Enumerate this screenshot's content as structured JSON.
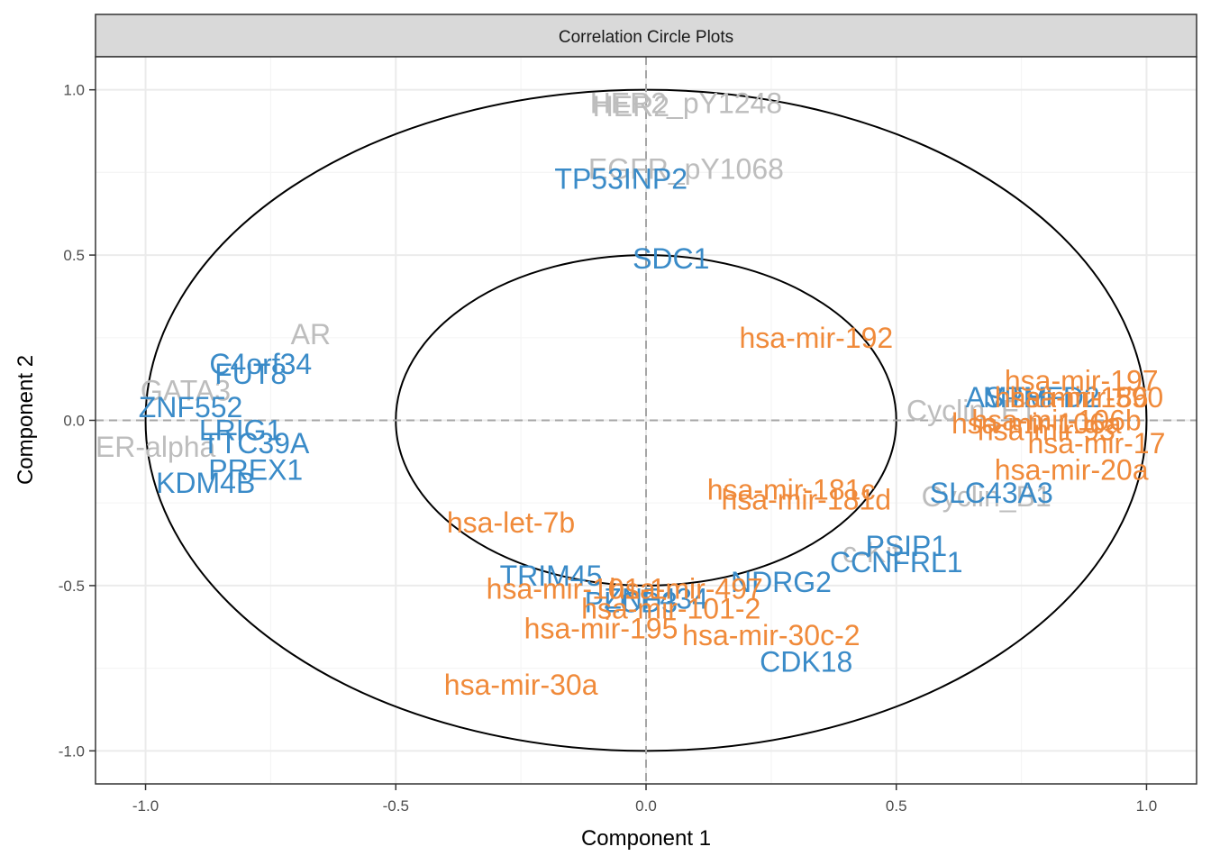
{
  "chart_data": {
    "type": "scatter",
    "title": "Correlation Circle Plots",
    "xlabel": "Component  1",
    "ylabel": "Component  2",
    "xlim": [
      -1.1,
      1.1
    ],
    "ylim": [
      -1.1,
      1.1
    ],
    "x_ticks": [
      -1.0,
      -0.5,
      0.0,
      0.5,
      1.0
    ],
    "y_ticks": [
      -1.0,
      -0.5,
      0.0,
      0.5,
      1.0
    ],
    "x_tick_labels": [
      "-1.0",
      "-0.5",
      "0.0",
      "0.5",
      "1.0"
    ],
    "y_tick_labels": [
      "-1.0",
      "-0.5",
      "0.0",
      "0.5",
      "1.0"
    ],
    "circles": [
      {
        "radius": 1.0
      },
      {
        "radius": 0.5
      }
    ],
    "grid": true,
    "colors": {
      "mRNA": "#3a8bc8",
      "miRNA": "#f08a3a",
      "protein": "#bdbdbd",
      "panel_border": "#333333",
      "strip_fill": "#d9d9d9",
      "grid_major": "#ebebeb",
      "grid_minor": "#f5f5f5",
      "reference_line": "#a6a6a6"
    },
    "series": [
      {
        "group": "protein",
        "points": [
          {
            "label": "HER2_pY1248",
            "x": 0.08,
            "y": 0.96
          },
          {
            "label": "HER2",
            "x": -0.03,
            "y": 0.95
          },
          {
            "label": "EGFR_pY1068",
            "x": 0.08,
            "y": 0.76
          },
          {
            "label": "AR",
            "x": -0.67,
            "y": 0.26
          },
          {
            "label": "GATA3",
            "x": -0.92,
            "y": 0.09
          },
          {
            "label": "ER-alpha",
            "x": -0.98,
            "y": -0.08
          },
          {
            "label": "Cyclin_E1",
            "x": 0.65,
            "y": 0.03
          },
          {
            "label": "Cyclin_B1",
            "x": 0.68,
            "y": -0.23
          },
          {
            "label": "c-Kit",
            "x": 0.45,
            "y": -0.4
          }
        ]
      },
      {
        "group": "mRNA",
        "points": [
          {
            "label": "TP53INP2",
            "x": -0.05,
            "y": 0.73
          },
          {
            "label": "SDC1",
            "x": 0.05,
            "y": 0.49
          },
          {
            "label": "C4orf34",
            "x": -0.77,
            "y": 0.17
          },
          {
            "label": "FUT8",
            "x": -0.79,
            "y": 0.14
          },
          {
            "label": "ZNF552",
            "x": -0.91,
            "y": 0.04
          },
          {
            "label": "LRIG1",
            "x": -0.81,
            "y": -0.03
          },
          {
            "label": "TTC39A",
            "x": -0.78,
            "y": -0.07
          },
          {
            "label": "PREX1",
            "x": -0.78,
            "y": -0.15
          },
          {
            "label": "KDM4B",
            "x": -0.88,
            "y": -0.19
          },
          {
            "label": "ASPM",
            "x": 0.72,
            "y": 0.07
          },
          {
            "label": "MTHFD2",
            "x": 0.79,
            "y": 0.07
          },
          {
            "label": "SLC43A3",
            "x": 0.69,
            "y": -0.22
          },
          {
            "label": "PSIP1",
            "x": 0.52,
            "y": -0.38
          },
          {
            "label": "CCNFRL1",
            "x": 0.5,
            "y": -0.43
          },
          {
            "label": "NDRG2",
            "x": 0.27,
            "y": -0.49
          },
          {
            "label": "TRIM45",
            "x": -0.19,
            "y": -0.47
          },
          {
            "label": "PLCD3",
            "x": -0.03,
            "y": -0.55
          },
          {
            "label": "ZNF434",
            "x": 0.02,
            "y": -0.54
          },
          {
            "label": "CDK18",
            "x": 0.32,
            "y": -0.73
          }
        ]
      },
      {
        "group": "miRNA",
        "points": [
          {
            "label": "hsa-mir-192",
            "x": 0.34,
            "y": 0.25
          },
          {
            "label": "hsa-mir-197",
            "x": 0.87,
            "y": 0.12
          },
          {
            "label": "hsa-mir-590",
            "x": 0.88,
            "y": 0.07
          },
          {
            "label": "hsa-mir-186",
            "x": 0.85,
            "y": 0.07
          },
          {
            "label": "hsa-mir-106a",
            "x": 0.78,
            "y": -0.01
          },
          {
            "label": "hsa-mir-106b",
            "x": 0.82,
            "y": 0.0
          },
          {
            "label": "hsa-mir-93",
            "x": 0.8,
            "y": -0.03
          },
          {
            "label": "hsa-mir-17",
            "x": 0.9,
            "y": -0.07
          },
          {
            "label": "hsa-mir-20a",
            "x": 0.85,
            "y": -0.15
          },
          {
            "label": "hsa-mir-181c",
            "x": 0.29,
            "y": -0.21
          },
          {
            "label": "hsa-mir-181d",
            "x": 0.32,
            "y": -0.24
          },
          {
            "label": "hsa-let-7b",
            "x": -0.27,
            "y": -0.31
          },
          {
            "label": "hsa-mir-101-1",
            "x": -0.14,
            "y": -0.51
          },
          {
            "label": "hsa-mir-497",
            "x": 0.08,
            "y": -0.51
          },
          {
            "label": "hsa-mir-101-2",
            "x": 0.05,
            "y": -0.57
          },
          {
            "label": "hsa-mir-195",
            "x": -0.09,
            "y": -0.63
          },
          {
            "label": "hsa-mir-30c-2",
            "x": 0.25,
            "y": -0.65
          },
          {
            "label": "hsa-mir-30a",
            "x": -0.25,
            "y": -0.8
          }
        ]
      }
    ]
  }
}
